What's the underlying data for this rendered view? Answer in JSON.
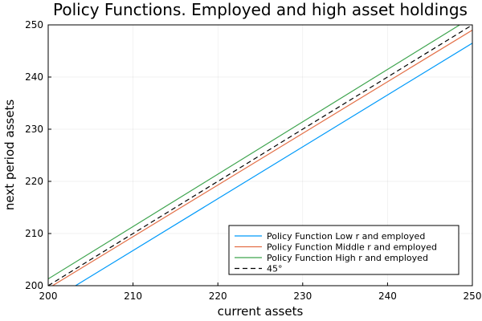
{
  "chart_data": {
    "type": "line",
    "title": "Policy Functions. Employed and high asset holdings",
    "xlabel": "current assets",
    "ylabel": "next period assets",
    "xlim": [
      200,
      250
    ],
    "ylim": [
      200,
      250
    ],
    "xticks": [
      200,
      210,
      220,
      230,
      240,
      250
    ],
    "yticks": [
      200,
      210,
      220,
      230,
      240,
      250
    ],
    "grid": true,
    "legend_position": "bottom-right",
    "series": [
      {
        "name": "Policy Function Low r and employed",
        "color": "#009AFA",
        "style": "solid",
        "x": [
          200,
          250
        ],
        "y": [
          196.8,
          246.5
        ]
      },
      {
        "name": "Policy Function Middle r and employed",
        "color": "#E36F47",
        "style": "solid",
        "x": [
          200,
          250
        ],
        "y": [
          199.5,
          249.0
        ]
      },
      {
        "name": "Policy Function High r and employed",
        "color": "#3EA44E",
        "style": "solid",
        "x": [
          200,
          250
        ],
        "y": [
          201.3,
          251.5
        ]
      },
      {
        "name": "45°",
        "color": "#000000",
        "style": "dashed",
        "x": [
          200,
          250
        ],
        "y": [
          200,
          250
        ]
      }
    ]
  }
}
